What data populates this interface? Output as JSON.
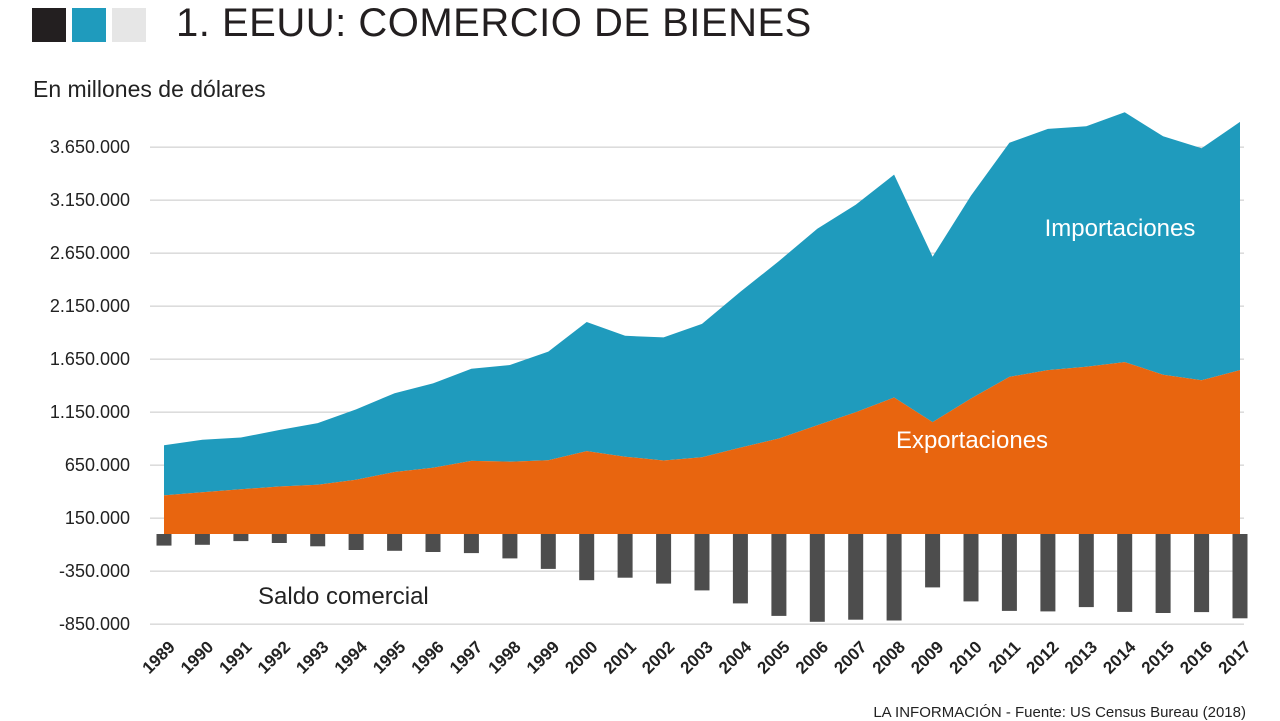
{
  "header": {
    "swatch_colors": [
      "#231f20",
      "#1f9bbd",
      "#e6e6e6"
    ],
    "title": "1. EEUU: COMERCIO DE BIENES",
    "unit": "En millones de dólares",
    "source": "LA INFORMACIÓN - Fuente: US Census Bureau (2018)"
  },
  "chart_data": {
    "type": "area",
    "title": "1. EEUU: COMERCIO DE BIENES",
    "ylabel": "En millones de dólares",
    "ylim": [
      -1000000,
      4200000
    ],
    "yticks": [
      3650000,
      3150000,
      2650000,
      2150000,
      1650000,
      1150000,
      650000,
      150000,
      -350000,
      -850000
    ],
    "ytick_labels": [
      "3.650.000",
      "3.150.000",
      "2.650.000",
      "2.150.000",
      "1.650.000",
      "1.150.000",
      "650.000",
      "150.000",
      "-350.000",
      "-850.000"
    ],
    "grid": true,
    "x": [
      "1989",
      "1990",
      "1991",
      "1992",
      "1993",
      "1994",
      "1995",
      "1996",
      "1997",
      "1998",
      "1999",
      "2000",
      "2001",
      "2002",
      "2003",
      "2004",
      "2005",
      "2006",
      "2007",
      "2008",
      "2009",
      "2010",
      "2011",
      "2012",
      "2013",
      "2014",
      "2015",
      "2016",
      "2017"
    ],
    "series": [
      {
        "name": "Exportaciones",
        "color": "#e8650f",
        "values": [
          363800,
          393600,
          421700,
          448200,
          465100,
          512600,
          584700,
          625100,
          689200,
          682100,
          695800,
          781900,
          729100,
          693100,
          724800,
          814900,
          901100,
          1025900,
          1148200,
          1287400,
          1056000,
          1278500,
          1482500,
          1545800,
          1578500,
          1621900,
          1503300,
          1451000,
          1546300
        ]
      },
      {
        "name": "Importaciones",
        "color": "#1f9bbd",
        "values": [
          473200,
          495300,
          488500,
          532700,
          580700,
          663300,
          743500,
          795300,
          869700,
          911900,
          1024600,
          1218000,
          1140900,
          1161400,
          1257100,
          1469700,
          1673500,
          1853900,
          1957000,
          2103600,
          1559600,
          1913900,
          2208000,
          2276300,
          2268000,
          2356400,
          2248800,
          2187800,
          2341900
        ]
      },
      {
        "name": "Saldo comercial",
        "color": "#4d4d4d",
        "values": [
          -109400,
          -101700,
          -66700,
          -84500,
          -115600,
          -150600,
          -158800,
          -170200,
          -180500,
          -229800,
          -328800,
          -436100,
          -411900,
          -468300,
          -532300,
          -654800,
          -772400,
          -828000,
          -808800,
          -816200,
          -503600,
          -635400,
          -725500,
          -730400,
          -689500,
          -734500,
          -745500,
          -736800,
          -795700
        ]
      }
    ]
  }
}
